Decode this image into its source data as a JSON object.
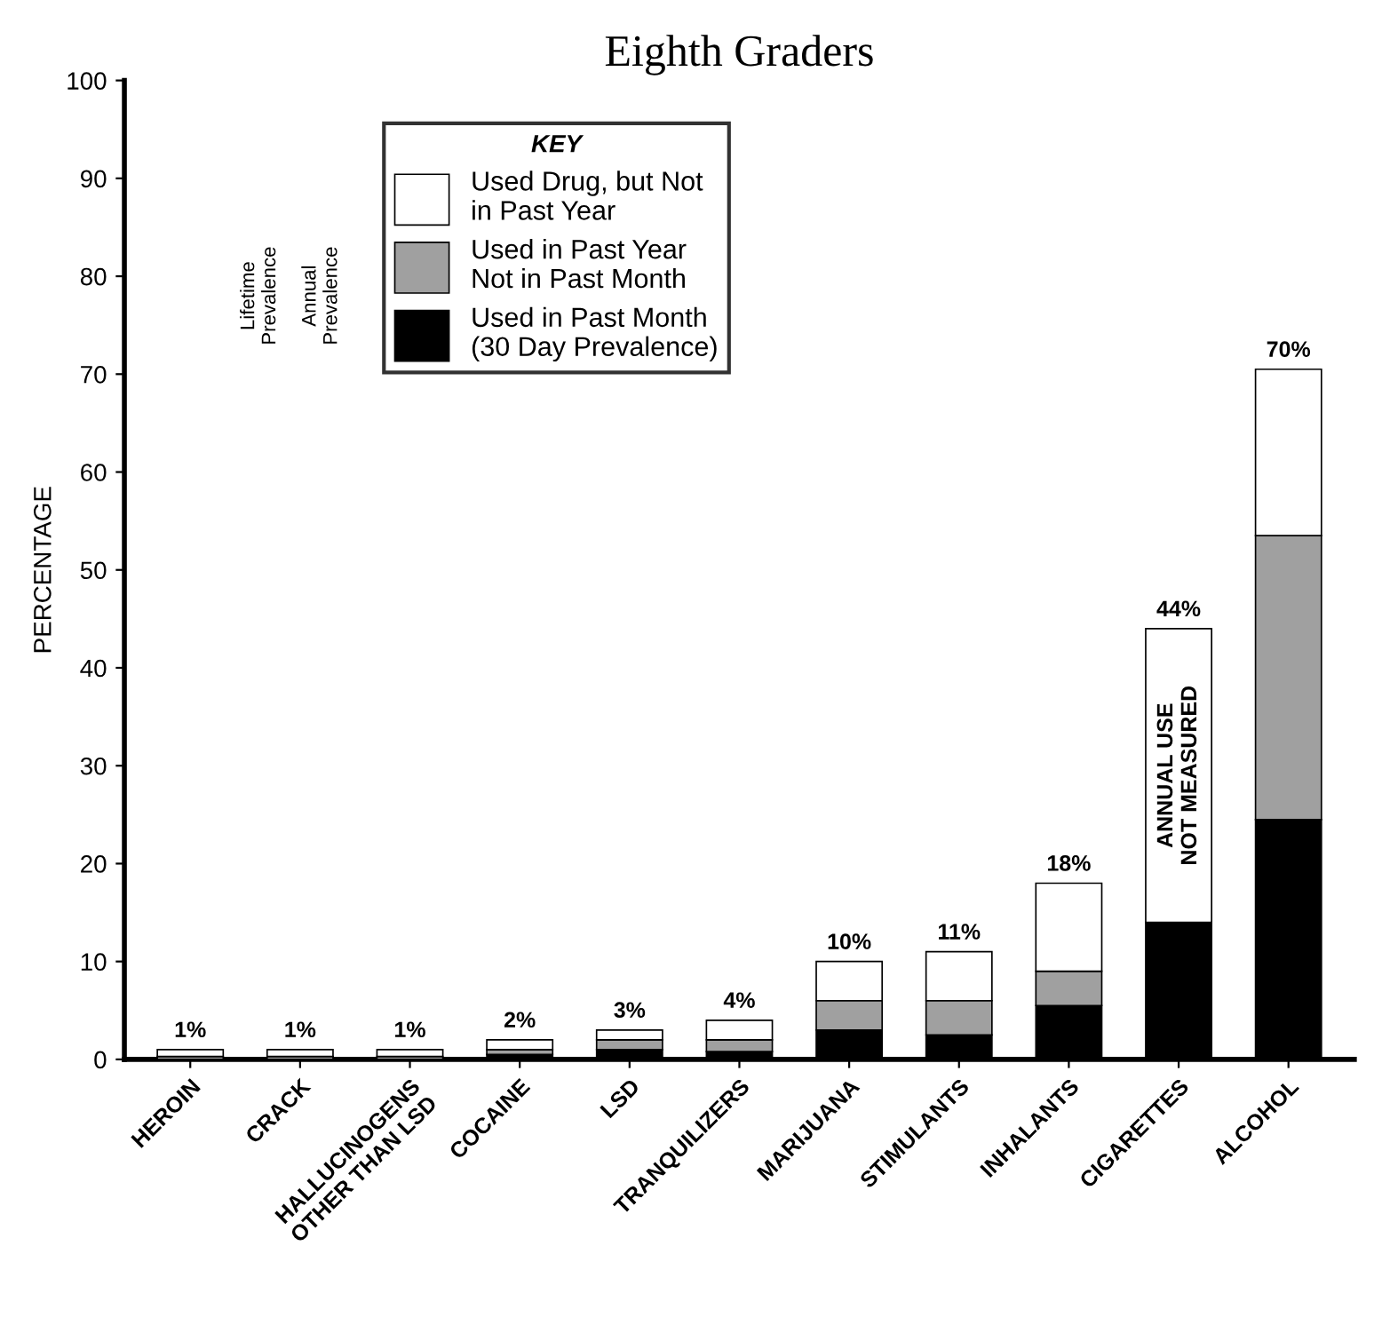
{
  "chart_data": {
    "type": "bar",
    "title": "Eighth Graders",
    "ylabel": "PERCENTAGE",
    "stacked": true,
    "categories": [
      "HEROIN",
      "CRACK",
      "HALLUCINOGENS\nOTHER THAN LSD",
      "COCAINE",
      "LSD",
      "TRANQUILIZERS",
      "MARIJUANA",
      "STIMULANTS",
      "INHALANTS",
      "CIGARETTES",
      "ALCOHOL"
    ],
    "series": [
      {
        "name": "Used in Past Month\n(30 Day Prevalence)",
        "color": "#000000",
        "values": [
          null,
          null,
          null,
          0.5,
          1,
          0.8,
          3,
          2.5,
          5.5,
          14,
          24.5
        ]
      },
      {
        "name": "Used in Past Year\nNot in Past Month",
        "color": "#a0a0a0",
        "values": [
          0.3,
          0.3,
          0.3,
          0.5,
          1,
          1.2,
          3,
          3.5,
          3.5,
          null,
          29
        ]
      },
      {
        "name": "Used Drug, but Not\nin Past Year",
        "color": "#ffffff",
        "values": [
          0.7,
          0.7,
          0.7,
          1,
          1,
          2,
          4,
          5,
          9,
          30,
          17
        ]
      }
    ],
    "totals": [
      "1%",
      "1%",
      "1%",
      "2%",
      "3%",
      "4%",
      "10%",
      "11%",
      "18%",
      "44%",
      "70%"
    ],
    "ylim": [
      0,
      100
    ],
    "yticks": [
      0,
      10,
      20,
      30,
      40,
      50,
      60,
      70,
      80,
      90,
      100
    ],
    "legend": "top left",
    "legend_title": "KEY",
    "annotations": [
      {
        "text": "ANNUAL USE\nNOT MEASURED",
        "x": "CIGARETTES",
        "y": 29
      },
      "Lifetime\nPrevalence",
      "Annual\nPrevalence"
    ],
    "grid": false
  }
}
